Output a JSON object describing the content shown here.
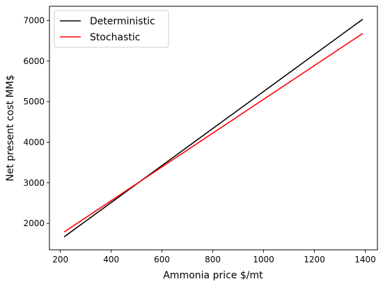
{
  "chart_data": {
    "type": "line",
    "title": "",
    "xlabel": "Ammonia price $/mt",
    "ylabel": "Net present cost MM$",
    "xlim": [
      157,
      1448
    ],
    "ylim": [
      1350,
      7350
    ],
    "xticks": [
      200,
      400,
      600,
      800,
      1000,
      1200,
      1400
    ],
    "yticks": [
      2000,
      3000,
      4000,
      5000,
      6000,
      7000
    ],
    "grid": false,
    "legend_position": "upper-left",
    "series": [
      {
        "name": "Deterministic",
        "color": "#000000",
        "x": [
          215,
          1390
        ],
        "y": [
          1670,
          7030
        ]
      },
      {
        "name": "Stochastic",
        "color": "#ff0000",
        "x": [
          215,
          1390
        ],
        "y": [
          1790,
          6680
        ]
      }
    ]
  }
}
